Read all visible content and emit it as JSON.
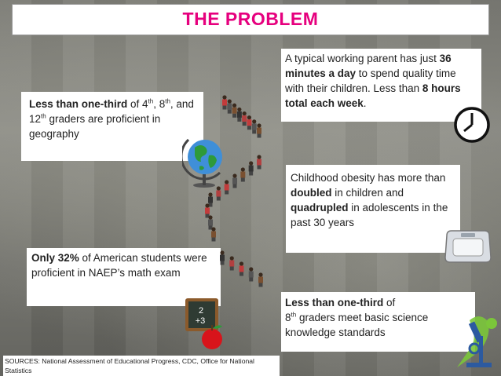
{
  "title": "THE PROBLEM",
  "stats": {
    "geography": {
      "bold": "Less than one-third",
      "t1": " of 4",
      "s1": "th",
      "t2": ", 8",
      "s2": "th",
      "t3": ", and 12",
      "s3": "th",
      "t4": " graders are proficient in geography"
    },
    "parent_time": {
      "t1": "A typical working parent has just ",
      "b1": "36 minutes a day",
      "t2": " to spend quality time with their children. Less than ",
      "b2": "8 hours total each week",
      "t3": "."
    },
    "obesity": {
      "t1": "Childhood obesity has more than ",
      "b1": "doubled",
      "t2": " in children and ",
      "b2": "quadrupled",
      "t3": " in adolescents in the past 30 years"
    },
    "math": {
      "bold": "Only 32%",
      "rest": " of American students were proficient in NAEP’s math exam"
    },
    "science": {
      "bold": "Less than one-third",
      "t1": " of",
      "t2": "8",
      "s1": "th",
      "t3": " graders meet basic science knowledge standards"
    }
  },
  "sources": "SOURCES: National Assessment of Educational Progress, CDC, Office for National Statistics",
  "chalkboard": {
    "line1": "2",
    "line2": "+3"
  },
  "icons": [
    "globe-icon",
    "clock-icon",
    "scale-icon",
    "chalkboard-apple-icon",
    "microscope-icon",
    "student-figures"
  ],
  "colors": {
    "title": "#e6007e",
    "card": "#ffffff"
  }
}
